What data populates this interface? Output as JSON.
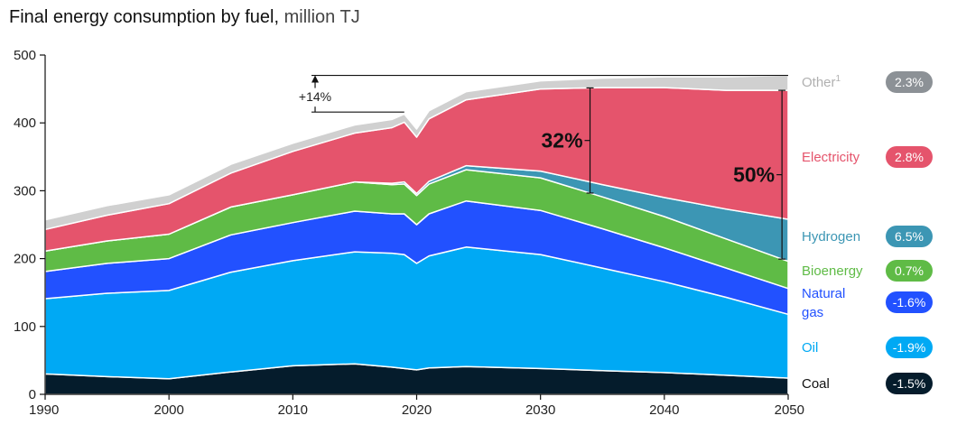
{
  "chart_data": {
    "type": "area",
    "title": "Final energy consumption by fuel,",
    "subtitle": "million TJ",
    "xlim": [
      1990,
      2050
    ],
    "ylim": [
      0,
      500
    ],
    "x_ticks": [
      "1990",
      "2000",
      "2010",
      "2020",
      "2030",
      "2040",
      "2050"
    ],
    "y_ticks": [
      "0",
      "100",
      "200",
      "300",
      "400",
      "500"
    ],
    "x": [
      1990,
      1995,
      2000,
      2005,
      2010,
      2015,
      2018,
      2019,
      2020,
      2021,
      2024,
      2030,
      2035,
      2040,
      2045,
      2050
    ],
    "series": [
      {
        "name": "Coal",
        "badge": "-1.5%",
        "color": "#051c2c",
        "label_color": "#111111",
        "values": [
          30,
          26,
          23,
          33,
          42,
          45,
          40,
          38,
          36,
          39,
          41,
          38,
          35,
          32,
          28,
          24
        ]
      },
      {
        "name": "Oil",
        "badge": "-1.9%",
        "color": "#00a9f4",
        "label_color": "#00a9f4",
        "values": [
          111,
          123,
          130,
          147,
          155,
          165,
          168,
          168,
          157,
          165,
          176,
          168,
          151,
          134,
          115,
          94
        ]
      },
      {
        "name": "Natural",
        "name_line2": "gas",
        "badge": "-1.6%",
        "color": "#2251ff",
        "label_color": "#2251ff",
        "values": [
          40,
          44,
          47,
          55,
          56,
          60,
          58,
          60,
          57,
          62,
          68,
          65,
          58,
          50,
          43,
          38
        ]
      },
      {
        "name": "Bioenergy",
        "badge": "0.7%",
        "color": "#5fbb46",
        "label_color": "#5fbb46",
        "values": [
          30,
          33,
          36,
          41,
          41,
          43,
          43,
          44,
          43,
          44,
          46,
          48,
          47,
          46,
          43,
          40
        ]
      },
      {
        "name": "Hydrogen",
        "badge": "6.5%",
        "color": "#3c96b4",
        "label_color": "#3c96b4",
        "values": [
          0,
          0,
          0,
          0,
          0,
          0,
          2,
          3,
          3,
          4,
          6,
          10,
          18,
          28,
          44,
          62
        ]
      },
      {
        "name": "Electricity",
        "badge": "2.8%",
        "color": "#e5546c",
        "label_color": "#e5546c",
        "values": [
          32,
          38,
          45,
          50,
          64,
          72,
          82,
          88,
          83,
          92,
          97,
          121,
          143,
          162,
          175,
          190
        ]
      },
      {
        "name": "Other",
        "name_sup": "1",
        "badge": "2.3%",
        "color": "#d0d0d0",
        "label_color": "#b0b0b0",
        "badge_color": "#8c9196",
        "values": [
          14,
          14,
          13,
          13,
          12,
          12,
          12,
          12,
          12,
          12,
          12,
          12,
          14,
          16,
          20,
          22
        ]
      }
    ],
    "annotations": {
      "growth": "+14%",
      "pct_2035": "32%",
      "pct_2050": "50%"
    }
  }
}
